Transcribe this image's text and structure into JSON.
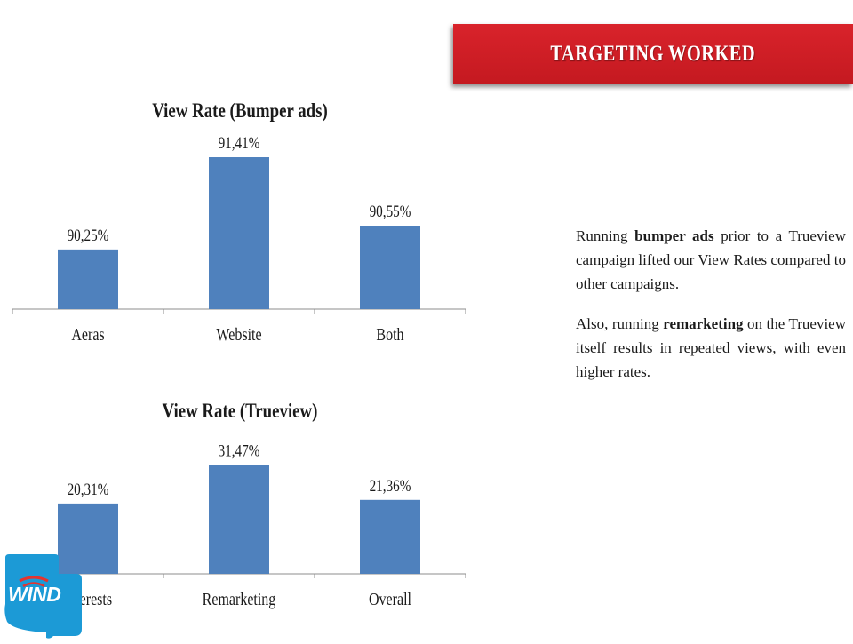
{
  "banner": {
    "title": "TARGETING WORKED"
  },
  "chart_data": [
    {
      "type": "bar",
      "title": "View Rate (Bumper ads)",
      "categories": [
        "Aeras",
        "Website",
        "Both"
      ],
      "values": [
        90.25,
        91.41,
        90.55
      ],
      "labels": [
        "90,25%",
        "91,41%",
        "90,55%"
      ],
      "ylim": [
        89.5,
        91.6
      ],
      "xlabel": "",
      "ylabel": "",
      "grid": false,
      "legend": "none",
      "bar_color": "#4f81bd"
    },
    {
      "type": "bar",
      "title": "View Rate (Trueview)",
      "categories": [
        "Interests",
        "Remarketing",
        "Overall"
      ],
      "values": [
        20.31,
        31.47,
        21.36
      ],
      "labels": [
        "20,31%",
        "31,47%",
        "21,36%"
      ],
      "ylim": [
        0,
        38
      ],
      "xlabel": "",
      "ylabel": "",
      "grid": false,
      "legend": "none",
      "bar_color": "#4f81bd"
    }
  ],
  "description": {
    "p1_before": "Running ",
    "p1_bold": "bumper ads",
    "p1_after": " prior to a Trueview campaign lifted our View Rates compared to other campaigns.",
    "p2_before": "Also, running ",
    "p2_bold": "remarketing",
    "p2_after": " on the Trueview itself results in repeated views, with even higher rates."
  },
  "logo": {
    "text": "WIND",
    "color": "#1c9ad6"
  }
}
